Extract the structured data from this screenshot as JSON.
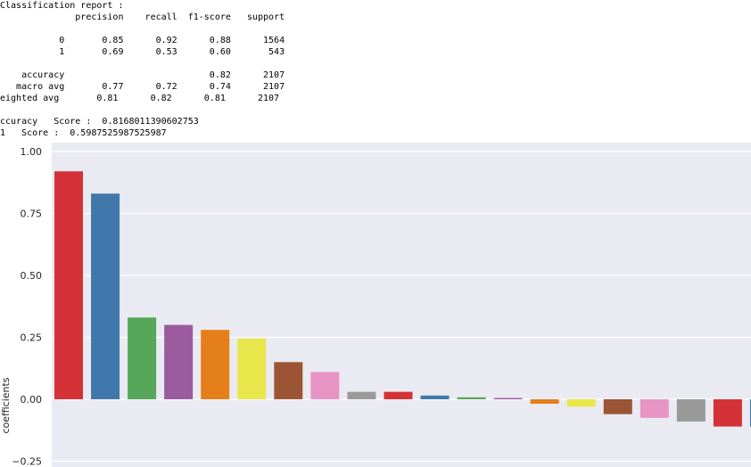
{
  "report": {
    "lines": [
      "Classification report :",
      "              precision    recall  f1-score   support",
      "",
      "           0       0.85      0.92      0.88      1564",
      "           1       0.69      0.53      0.60       543",
      "",
      "    accuracy                           0.82      2107",
      "   macro avg       0.77      0.72      0.74      2107",
      "eighted avg       0.81      0.82      0.81      2107",
      "",
      "ccuracy   Score :  0.8168011390602753",
      "1   Score :  0.5987525987525987"
    ]
  },
  "chart_data": {
    "type": "bar",
    "title": "",
    "xlabel": "",
    "ylabel": "coefficients",
    "ylim": [
      -0.27,
      1.0
    ],
    "yticks": [
      1.0,
      0.75,
      0.5,
      0.25,
      0.0,
      -0.25
    ],
    "ytick_labels": [
      "1.00",
      "0.75",
      "0.50",
      "0.25",
      "0.00",
      "−0.25"
    ],
    "grid": true,
    "legend": "none",
    "background": "#eaeaf2",
    "values": [
      0.92,
      0.83,
      0.33,
      0.3,
      0.28,
      0.245,
      0.15,
      0.11,
      0.03,
      0.03,
      0.015,
      0.008,
      0.005,
      -0.018,
      -0.03,
      -0.06,
      -0.075,
      -0.09,
      -0.11,
      -0.11
    ],
    "colors": [
      "#d53237",
      "#4178ac",
      "#57a75a",
      "#9b5b9e",
      "#e57f1a",
      "#e8e64b",
      "#9b5534",
      "#e895c6",
      "#999999",
      "#d53237",
      "#4178ac",
      "#57a75a",
      "#9b5b9e",
      "#e57f1a",
      "#e8e64b",
      "#9b5534",
      "#e895c6",
      "#999999",
      "#d53237",
      "#4178ac"
    ]
  }
}
